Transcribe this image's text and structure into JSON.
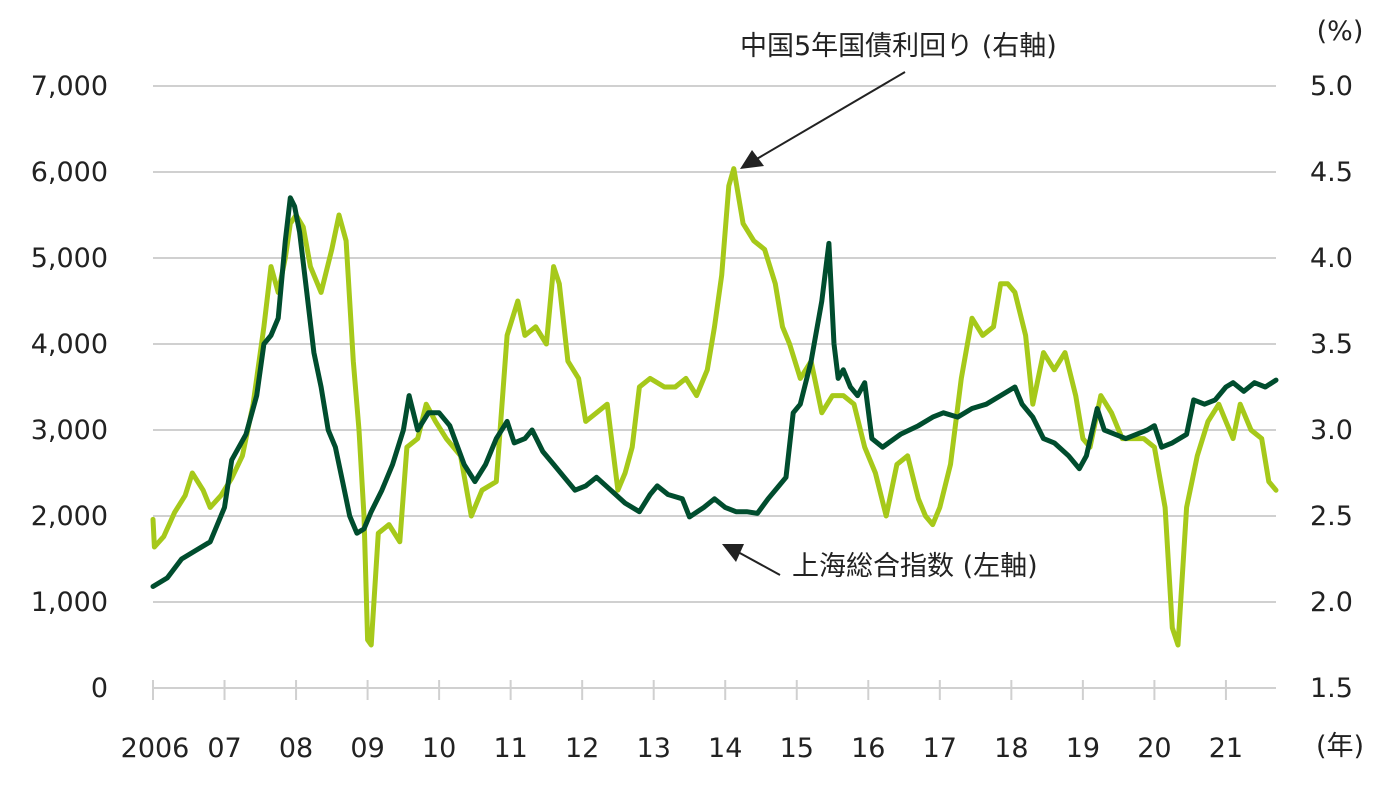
{
  "chart_data": {
    "type": "line",
    "x_unit_label": "(年)",
    "y_right_unit_label": "(%)",
    "x_ticks": [
      "2006",
      "07",
      "08",
      "09",
      "10",
      "11",
      "12",
      "13",
      "14",
      "15",
      "16",
      "17",
      "18",
      "19",
      "20",
      "21"
    ],
    "y_left_ticks": [
      "7,000",
      "6,000",
      "5,000",
      "4,000",
      "3,000",
      "2,000",
      "1,000",
      "0"
    ],
    "y_right_ticks": [
      "5.0",
      "4.5",
      "4.0",
      "3.5",
      "3.0",
      "2.5",
      "2.0",
      "1.5"
    ],
    "y_left_range": [
      0,
      7000
    ],
    "y_right_range": [
      1.5,
      5.0
    ],
    "x_range": [
      2006.0,
      2021.7
    ],
    "grid": true,
    "colors": {
      "shanghai": "#004d2e",
      "bond": "#a6c91a",
      "grid": "#d0d0d0",
      "text": "#222222"
    },
    "annotations": {
      "bond_label": "中国5年国債利回り (右軸)",
      "shanghai_label": "上海総合指数 (左軸)"
    },
    "series": [
      {
        "name": "上海総合指数 (左軸)",
        "axis": "left",
        "points": [
          [
            2006.0,
            1180
          ],
          [
            2006.2,
            1280
          ],
          [
            2006.4,
            1500
          ],
          [
            2006.6,
            1600
          ],
          [
            2006.8,
            1700
          ],
          [
            2007.0,
            2100
          ],
          [
            2007.1,
            2650
          ],
          [
            2007.3,
            2950
          ],
          [
            2007.45,
            3400
          ],
          [
            2007.55,
            4000
          ],
          [
            2007.65,
            4100
          ],
          [
            2007.75,
            4300
          ],
          [
            2007.85,
            5200
          ],
          [
            2007.92,
            5700
          ],
          [
            2007.98,
            5600
          ],
          [
            2008.05,
            5300
          ],
          [
            2008.15,
            4600
          ],
          [
            2008.25,
            3900
          ],
          [
            2008.35,
            3500
          ],
          [
            2008.45,
            3000
          ],
          [
            2008.55,
            2800
          ],
          [
            2008.65,
            2400
          ],
          [
            2008.75,
            2000
          ],
          [
            2008.85,
            1800
          ],
          [
            2008.95,
            1850
          ],
          [
            2009.05,
            2050
          ],
          [
            2009.2,
            2300
          ],
          [
            2009.35,
            2600
          ],
          [
            2009.5,
            3000
          ],
          [
            2009.58,
            3400
          ],
          [
            2009.7,
            3000
          ],
          [
            2009.85,
            3200
          ],
          [
            2010.0,
            3200
          ],
          [
            2010.15,
            3050
          ],
          [
            2010.35,
            2600
          ],
          [
            2010.5,
            2400
          ],
          [
            2010.65,
            2600
          ],
          [
            2010.8,
            2900
          ],
          [
            2010.95,
            3100
          ],
          [
            2011.05,
            2850
          ],
          [
            2011.2,
            2900
          ],
          [
            2011.3,
            3000
          ],
          [
            2011.45,
            2750
          ],
          [
            2011.6,
            2600
          ],
          [
            2011.75,
            2450
          ],
          [
            2011.9,
            2300
          ],
          [
            2012.05,
            2350
          ],
          [
            2012.2,
            2450
          ],
          [
            2012.4,
            2300
          ],
          [
            2012.6,
            2150
          ],
          [
            2012.8,
            2050
          ],
          [
            2012.95,
            2250
          ],
          [
            2013.05,
            2350
          ],
          [
            2013.2,
            2250
          ],
          [
            2013.4,
            2200
          ],
          [
            2013.5,
            1990
          ],
          [
            2013.7,
            2100
          ],
          [
            2013.85,
            2200
          ],
          [
            2014.0,
            2100
          ],
          [
            2014.15,
            2050
          ],
          [
            2014.3,
            2050
          ],
          [
            2014.45,
            2030
          ],
          [
            2014.6,
            2200
          ],
          [
            2014.75,
            2350
          ],
          [
            2014.85,
            2450
          ],
          [
            2014.95,
            3200
          ],
          [
            2015.05,
            3300
          ],
          [
            2015.2,
            3800
          ],
          [
            2015.35,
            4500
          ],
          [
            2015.45,
            5170
          ],
          [
            2015.52,
            4000
          ],
          [
            2015.58,
            3600
          ],
          [
            2015.65,
            3700
          ],
          [
            2015.75,
            3500
          ],
          [
            2015.85,
            3400
          ],
          [
            2015.95,
            3550
          ],
          [
            2016.05,
            2900
          ],
          [
            2016.2,
            2800
          ],
          [
            2016.45,
            2950
          ],
          [
            2016.7,
            3050
          ],
          [
            2016.9,
            3150
          ],
          [
            2017.05,
            3200
          ],
          [
            2017.25,
            3150
          ],
          [
            2017.45,
            3250
          ],
          [
            2017.65,
            3300
          ],
          [
            2017.85,
            3400
          ],
          [
            2018.05,
            3500
          ],
          [
            2018.15,
            3300
          ],
          [
            2018.3,
            3150
          ],
          [
            2018.45,
            2900
          ],
          [
            2018.6,
            2850
          ],
          [
            2018.8,
            2700
          ],
          [
            2018.95,
            2550
          ],
          [
            2019.05,
            2700
          ],
          [
            2019.2,
            3250
          ],
          [
            2019.3,
            3000
          ],
          [
            2019.45,
            2950
          ],
          [
            2019.6,
            2900
          ],
          [
            2019.75,
            2950
          ],
          [
            2019.9,
            3000
          ],
          [
            2020.0,
            3050
          ],
          [
            2020.1,
            2800
          ],
          [
            2020.25,
            2850
          ],
          [
            2020.45,
            2950
          ],
          [
            2020.55,
            3350
          ],
          [
            2020.7,
            3300
          ],
          [
            2020.85,
            3350
          ],
          [
            2021.0,
            3500
          ],
          [
            2021.1,
            3550
          ],
          [
            2021.25,
            3450
          ],
          [
            2021.4,
            3550
          ],
          [
            2021.55,
            3500
          ],
          [
            2021.7,
            3580
          ]
        ]
      },
      {
        "name": "中国5年国債利回り (右軸)",
        "axis": "right",
        "points": [
          [
            2006.0,
            2.48
          ],
          [
            2006.02,
            2.32
          ],
          [
            2006.15,
            2.38
          ],
          [
            2006.3,
            2.52
          ],
          [
            2006.45,
            2.62
          ],
          [
            2006.55,
            2.75
          ],
          [
            2006.7,
            2.65
          ],
          [
            2006.8,
            2.55
          ],
          [
            2006.95,
            2.62
          ],
          [
            2007.1,
            2.72
          ],
          [
            2007.25,
            2.85
          ],
          [
            2007.4,
            3.15
          ],
          [
            2007.55,
            3.6
          ],
          [
            2007.65,
            3.95
          ],
          [
            2007.75,
            3.8
          ],
          [
            2007.85,
            4.0
          ],
          [
            2007.92,
            4.2
          ],
          [
            2008.0,
            4.25
          ],
          [
            2008.1,
            4.18
          ],
          [
            2008.2,
            3.95
          ],
          [
            2008.35,
            3.8
          ],
          [
            2008.5,
            4.05
          ],
          [
            2008.6,
            4.25
          ],
          [
            2008.7,
            4.1
          ],
          [
            2008.8,
            3.4
          ],
          [
            2008.88,
            3.0
          ],
          [
            2008.95,
            2.5
          ],
          [
            2009.0,
            1.78
          ],
          [
            2009.05,
            1.75
          ],
          [
            2009.15,
            2.4
          ],
          [
            2009.3,
            2.45
          ],
          [
            2009.45,
            2.35
          ],
          [
            2009.55,
            2.9
          ],
          [
            2009.7,
            2.95
          ],
          [
            2009.82,
            3.15
          ],
          [
            2009.95,
            3.05
          ],
          [
            2010.1,
            2.95
          ],
          [
            2010.3,
            2.85
          ],
          [
            2010.45,
            2.5
          ],
          [
            2010.6,
            2.65
          ],
          [
            2010.8,
            2.7
          ],
          [
            2010.95,
            3.55
          ],
          [
            2011.1,
            3.75
          ],
          [
            2011.2,
            3.55
          ],
          [
            2011.35,
            3.6
          ],
          [
            2011.5,
            3.5
          ],
          [
            2011.6,
            3.95
          ],
          [
            2011.68,
            3.85
          ],
          [
            2011.8,
            3.4
          ],
          [
            2011.95,
            3.3
          ],
          [
            2012.05,
            3.05
          ],
          [
            2012.2,
            3.1
          ],
          [
            2012.35,
            3.15
          ],
          [
            2012.5,
            2.65
          ],
          [
            2012.6,
            2.75
          ],
          [
            2012.7,
            2.9
          ],
          [
            2012.8,
            3.25
          ],
          [
            2012.95,
            3.3
          ],
          [
            2013.15,
            3.25
          ],
          [
            2013.3,
            3.25
          ],
          [
            2013.45,
            3.3
          ],
          [
            2013.6,
            3.2
          ],
          [
            2013.75,
            3.35
          ],
          [
            2013.85,
            3.6
          ],
          [
            2013.95,
            3.9
          ],
          [
            2014.05,
            4.42
          ],
          [
            2014.12,
            4.52
          ],
          [
            2014.25,
            4.2
          ],
          [
            2014.4,
            4.1
          ],
          [
            2014.55,
            4.05
          ],
          [
            2014.7,
            3.85
          ],
          [
            2014.8,
            3.6
          ],
          [
            2014.9,
            3.5
          ],
          [
            2015.05,
            3.3
          ],
          [
            2015.2,
            3.4
          ],
          [
            2015.35,
            3.1
          ],
          [
            2015.5,
            3.2
          ],
          [
            2015.65,
            3.2
          ],
          [
            2015.8,
            3.15
          ],
          [
            2015.95,
            2.9
          ],
          [
            2016.1,
            2.75
          ],
          [
            2016.25,
            2.5
          ],
          [
            2016.4,
            2.8
          ],
          [
            2016.55,
            2.85
          ],
          [
            2016.7,
            2.6
          ],
          [
            2016.8,
            2.5
          ],
          [
            2016.9,
            2.45
          ],
          [
            2017.0,
            2.55
          ],
          [
            2017.15,
            2.8
          ],
          [
            2017.3,
            3.3
          ],
          [
            2017.45,
            3.65
          ],
          [
            2017.6,
            3.55
          ],
          [
            2017.75,
            3.6
          ],
          [
            2017.85,
            3.85
          ],
          [
            2017.95,
            3.85
          ],
          [
            2018.05,
            3.8
          ],
          [
            2018.2,
            3.55
          ],
          [
            2018.3,
            3.15
          ],
          [
            2018.45,
            3.45
          ],
          [
            2018.6,
            3.35
          ],
          [
            2018.75,
            3.45
          ],
          [
            2018.9,
            3.2
          ],
          [
            2019.0,
            2.95
          ],
          [
            2019.1,
            2.9
          ],
          [
            2019.25,
            3.2
          ],
          [
            2019.4,
            3.1
          ],
          [
            2019.55,
            2.95
          ],
          [
            2019.7,
            2.95
          ],
          [
            2019.85,
            2.95
          ],
          [
            2020.0,
            2.9
          ],
          [
            2020.15,
            2.55
          ],
          [
            2020.25,
            1.85
          ],
          [
            2020.33,
            1.75
          ],
          [
            2020.45,
            2.55
          ],
          [
            2020.6,
            2.85
          ],
          [
            2020.75,
            3.05
          ],
          [
            2020.9,
            3.15
          ],
          [
            2021.0,
            3.05
          ],
          [
            2021.1,
            2.95
          ],
          [
            2021.2,
            3.15
          ],
          [
            2021.35,
            3.0
          ],
          [
            2021.5,
            2.95
          ],
          [
            2021.6,
            2.7
          ],
          [
            2021.7,
            2.65
          ]
        ]
      }
    ]
  }
}
